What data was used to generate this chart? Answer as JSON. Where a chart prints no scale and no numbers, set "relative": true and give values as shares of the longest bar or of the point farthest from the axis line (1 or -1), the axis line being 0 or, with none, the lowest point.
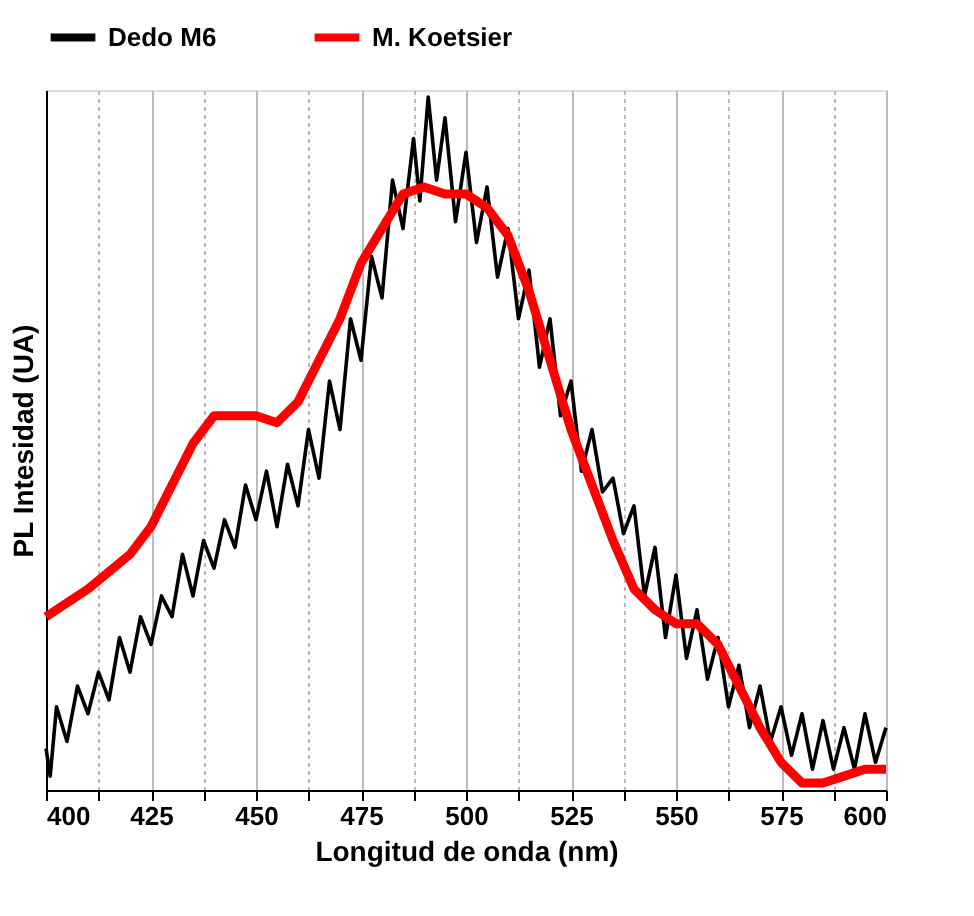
{
  "chart_data": {
    "type": "line",
    "relative": true,
    "xlabel": "Longitud de onda (nm)",
    "ylabel": "PL Intesidad (UA)",
    "xlim": [
      400,
      600
    ],
    "xticks": [
      400,
      {
        "value": 412.5,
        "label": null
      },
      425,
      {
        "value": 437.5,
        "label": null
      },
      450,
      {
        "value": 462.5,
        "label": null
      },
      475,
      {
        "value": 487.5,
        "label": null
      },
      500,
      {
        "value": 512.5,
        "label": null
      },
      525,
      {
        "value": 537.5,
        "label": null
      },
      550,
      {
        "value": 562.5,
        "label": null
      },
      575,
      {
        "value": 587.5,
        "label": null
      },
      600
    ],
    "grid": "x",
    "legend": "top",
    "tick_labels": "x",
    "line_style": "solid",
    "marker": "none",
    "series": [
      {
        "name": "Dedo M6",
        "color": "#000000",
        "x": [
          400,
          401,
          402.5,
          405,
          407.5,
          410,
          412.5,
          415,
          417.5,
          420,
          422.5,
          425,
          427.5,
          430,
          432.5,
          435,
          437.5,
          440,
          442.5,
          445,
          447.5,
          450,
          452.5,
          455,
          457.5,
          460,
          462.5,
          465,
          467.5,
          470,
          472.5,
          475,
          477.5,
          480,
          482.5,
          485,
          487.5,
          489,
          491,
          493,
          495,
          497.5,
          500,
          502.5,
          505,
          507.5,
          510,
          512.5,
          515,
          517.5,
          520,
          522.5,
          525,
          527.5,
          530,
          532.5,
          535,
          537.5,
          540,
          542.5,
          545,
          547.5,
          550,
          552.5,
          555,
          557.5,
          560,
          562.5,
          565,
          567.5,
          570,
          572.5,
          575,
          577.5,
          580,
          582.5,
          585,
          587.5,
          590,
          592.5,
          595,
          597.5,
          600
        ],
        "values": [
          0.06,
          0.02,
          0.12,
          0.07,
          0.15,
          0.11,
          0.17,
          0.13,
          0.22,
          0.17,
          0.25,
          0.21,
          0.28,
          0.25,
          0.34,
          0.28,
          0.36,
          0.32,
          0.39,
          0.35,
          0.44,
          0.39,
          0.46,
          0.38,
          0.47,
          0.41,
          0.52,
          0.45,
          0.59,
          0.52,
          0.68,
          0.62,
          0.77,
          0.71,
          0.88,
          0.81,
          0.94,
          0.85,
          1.0,
          0.88,
          0.97,
          0.82,
          0.92,
          0.79,
          0.87,
          0.74,
          0.81,
          0.68,
          0.75,
          0.61,
          0.68,
          0.54,
          0.59,
          0.46,
          0.52,
          0.43,
          0.45,
          0.37,
          0.41,
          0.28,
          0.35,
          0.22,
          0.31,
          0.19,
          0.26,
          0.16,
          0.22,
          0.12,
          0.18,
          0.09,
          0.15,
          0.07,
          0.12,
          0.05,
          0.11,
          0.03,
          0.1,
          0.03,
          0.09,
          0.03,
          0.11,
          0.04,
          0.09
        ]
      },
      {
        "name": "M. Koetsier",
        "color": "#ff0000",
        "x": [
          400,
          410,
          420,
          425,
          430,
          435,
          440,
          445,
          450,
          455,
          460,
          465,
          470,
          475,
          480,
          485,
          490,
          495,
          500,
          505,
          510,
          515,
          520,
          525,
          530,
          535,
          540,
          545,
          550,
          555,
          560,
          565,
          570,
          575,
          580,
          585,
          590,
          595,
          600
        ],
        "values": [
          0.25,
          0.29,
          0.34,
          0.38,
          0.44,
          0.5,
          0.54,
          0.54,
          0.54,
          0.53,
          0.56,
          0.62,
          0.68,
          0.76,
          0.81,
          0.86,
          0.87,
          0.86,
          0.86,
          0.84,
          0.8,
          0.72,
          0.62,
          0.52,
          0.44,
          0.36,
          0.29,
          0.26,
          0.24,
          0.24,
          0.21,
          0.15,
          0.09,
          0.04,
          0.01,
          0.01,
          0.02,
          0.03,
          0.03
        ]
      }
    ]
  }
}
